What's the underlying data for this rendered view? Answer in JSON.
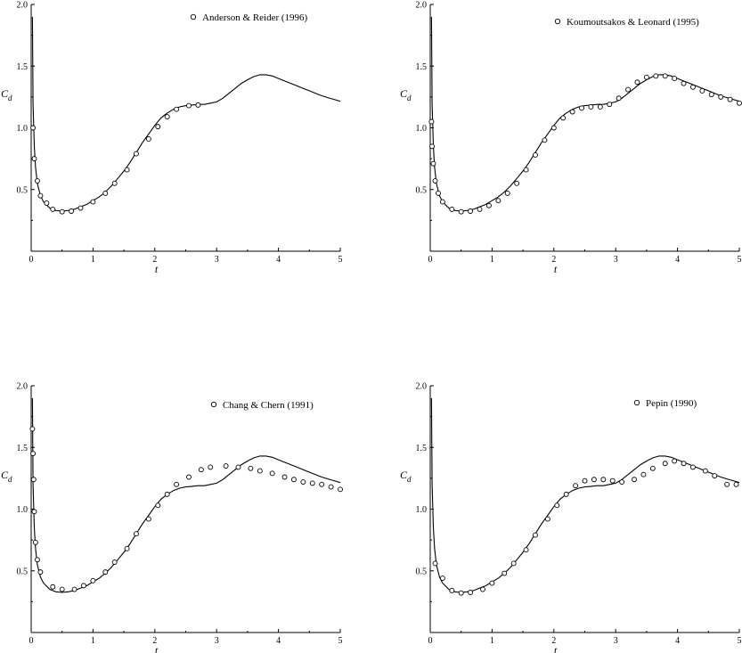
{
  "chart_data": [
    {
      "type": "line",
      "xlabel": "t",
      "ylabel": "C_d",
      "xlim": [
        0,
        5
      ],
      "ylim": [
        0,
        2.0
      ],
      "xticks": [
        "0",
        "1",
        "2",
        "3",
        "4",
        "5"
      ],
      "yticks": [
        "0.5",
        "1.0",
        "1.5",
        "2.0"
      ],
      "grid": false,
      "legend_position": "top-right",
      "series": [
        {
          "style": "solid-line",
          "x": [
            0.02,
            0.03,
            0.05,
            0.07,
            0.1,
            0.15,
            0.2,
            0.3,
            0.4,
            0.5,
            0.6,
            0.7,
            0.8,
            0.9,
            1.0,
            1.1,
            1.2,
            1.3,
            1.4,
            1.5,
            1.6,
            1.7,
            1.8,
            1.9,
            2.0,
            2.1,
            2.2,
            2.3,
            2.4,
            2.5,
            2.6,
            2.7,
            2.8,
            2.9,
            3.0,
            3.1,
            3.2,
            3.3,
            3.4,
            3.5,
            3.6,
            3.7,
            3.8,
            3.9,
            4.0,
            4.1,
            4.2,
            4.3,
            4.4,
            4.5,
            4.6,
            4.7,
            4.8,
            4.9,
            5.0
          ],
          "y": [
            1.9,
            1.2,
            0.85,
            0.68,
            0.55,
            0.45,
            0.4,
            0.35,
            0.33,
            0.325,
            0.33,
            0.34,
            0.36,
            0.38,
            0.41,
            0.44,
            0.48,
            0.53,
            0.59,
            0.65,
            0.72,
            0.8,
            0.88,
            0.95,
            1.02,
            1.08,
            1.12,
            1.15,
            1.17,
            1.18,
            1.185,
            1.19,
            1.19,
            1.2,
            1.21,
            1.24,
            1.28,
            1.32,
            1.36,
            1.39,
            1.415,
            1.43,
            1.43,
            1.42,
            1.4,
            1.38,
            1.36,
            1.34,
            1.32,
            1.3,
            1.28,
            1.26,
            1.245,
            1.23,
            1.215
          ]
        },
        {
          "name": "Anderson & Reider (1996)",
          "style": "open-circles",
          "x": [
            0.03,
            0.05,
            0.1,
            0.15,
            0.25,
            0.35,
            0.5,
            0.65,
            0.8,
            1.0,
            1.2,
            1.35,
            1.55,
            1.7,
            1.9,
            2.05,
            2.2,
            2.35,
            2.55,
            2.7
          ],
          "y": [
            1.0,
            0.75,
            0.57,
            0.45,
            0.39,
            0.34,
            0.32,
            0.325,
            0.35,
            0.4,
            0.47,
            0.55,
            0.66,
            0.79,
            0.91,
            1.01,
            1.09,
            1.15,
            1.18,
            1.185
          ]
        }
      ]
    },
    {
      "type": "line",
      "xlabel": "t",
      "ylabel": "C_d",
      "xlim": [
        0,
        5
      ],
      "ylim": [
        0,
        2.0
      ],
      "xticks": [
        "0",
        "1",
        "2",
        "3",
        "4",
        "5"
      ],
      "yticks": [
        "0.5",
        "1.0",
        "1.5",
        "2.0"
      ],
      "grid": false,
      "legend_position": "top-right",
      "series": [
        {
          "style": "solid-line",
          "x": [
            0.02,
            0.03,
            0.05,
            0.07,
            0.1,
            0.15,
            0.2,
            0.3,
            0.4,
            0.5,
            0.6,
            0.7,
            0.8,
            0.9,
            1.0,
            1.1,
            1.2,
            1.3,
            1.4,
            1.5,
            1.6,
            1.7,
            1.8,
            1.9,
            2.0,
            2.1,
            2.2,
            2.3,
            2.4,
            2.5,
            2.6,
            2.7,
            2.8,
            2.9,
            3.0,
            3.1,
            3.2,
            3.3,
            3.4,
            3.5,
            3.6,
            3.7,
            3.8,
            3.9,
            4.0,
            4.1,
            4.2,
            4.3,
            4.4,
            4.5,
            4.6,
            4.7,
            4.8,
            4.9,
            5.0
          ],
          "y": [
            1.9,
            1.2,
            0.85,
            0.68,
            0.55,
            0.45,
            0.4,
            0.35,
            0.33,
            0.325,
            0.33,
            0.34,
            0.36,
            0.38,
            0.41,
            0.44,
            0.48,
            0.53,
            0.59,
            0.65,
            0.72,
            0.8,
            0.88,
            0.95,
            1.02,
            1.08,
            1.12,
            1.15,
            1.17,
            1.18,
            1.185,
            1.19,
            1.19,
            1.2,
            1.21,
            1.24,
            1.28,
            1.32,
            1.36,
            1.39,
            1.415,
            1.43,
            1.43,
            1.42,
            1.4,
            1.38,
            1.36,
            1.34,
            1.32,
            1.3,
            1.28,
            1.26,
            1.245,
            1.23,
            1.215
          ]
        },
        {
          "name": "Koumoutsakos & Leonard (1995)",
          "style": "open-circles",
          "x": [
            0.02,
            0.03,
            0.05,
            0.08,
            0.13,
            0.2,
            0.35,
            0.5,
            0.65,
            0.8,
            0.95,
            1.1,
            1.25,
            1.4,
            1.55,
            1.7,
            1.85,
            2.0,
            2.15,
            2.3,
            2.45,
            2.6,
            2.75,
            2.9,
            3.05,
            3.2,
            3.35,
            3.5,
            3.65,
            3.8,
            3.95,
            4.1,
            4.25,
            4.4,
            4.55,
            4.7,
            4.85,
            5.0
          ],
          "y": [
            1.05,
            0.85,
            0.71,
            0.57,
            0.47,
            0.4,
            0.34,
            0.32,
            0.325,
            0.34,
            0.37,
            0.41,
            0.47,
            0.55,
            0.66,
            0.78,
            0.9,
            1.0,
            1.08,
            1.13,
            1.16,
            1.17,
            1.17,
            1.19,
            1.24,
            1.31,
            1.37,
            1.41,
            1.42,
            1.42,
            1.4,
            1.36,
            1.33,
            1.3,
            1.27,
            1.25,
            1.23,
            1.2
          ]
        }
      ]
    },
    {
      "type": "line",
      "xlabel": "t",
      "ylabel": "C_d",
      "xlim": [
        0,
        5
      ],
      "ylim": [
        0,
        2.0
      ],
      "xticks": [
        "0",
        "1",
        "2",
        "3",
        "4",
        "5"
      ],
      "yticks": [
        "0.5",
        "1.0",
        "1.5",
        "2.0"
      ],
      "grid": false,
      "legend_position": "top-right",
      "series": [
        {
          "style": "solid-line",
          "x": [
            0.02,
            0.03,
            0.05,
            0.07,
            0.1,
            0.15,
            0.2,
            0.3,
            0.4,
            0.5,
            0.6,
            0.7,
            0.8,
            0.9,
            1.0,
            1.1,
            1.2,
            1.3,
            1.4,
            1.5,
            1.6,
            1.7,
            1.8,
            1.9,
            2.0,
            2.1,
            2.2,
            2.3,
            2.4,
            2.5,
            2.6,
            2.7,
            2.8,
            2.9,
            3.0,
            3.1,
            3.2,
            3.3,
            3.4,
            3.5,
            3.6,
            3.7,
            3.8,
            3.9,
            4.0,
            4.1,
            4.2,
            4.3,
            4.4,
            4.5,
            4.6,
            4.7,
            4.8,
            4.9,
            5.0
          ],
          "y": [
            1.9,
            1.2,
            0.85,
            0.68,
            0.55,
            0.45,
            0.4,
            0.35,
            0.33,
            0.325,
            0.33,
            0.34,
            0.36,
            0.38,
            0.41,
            0.44,
            0.48,
            0.53,
            0.59,
            0.65,
            0.72,
            0.8,
            0.88,
            0.95,
            1.02,
            1.08,
            1.12,
            1.15,
            1.17,
            1.18,
            1.185,
            1.19,
            1.19,
            1.2,
            1.21,
            1.24,
            1.28,
            1.32,
            1.36,
            1.39,
            1.415,
            1.43,
            1.43,
            1.42,
            1.4,
            1.38,
            1.36,
            1.34,
            1.32,
            1.3,
            1.28,
            1.26,
            1.245,
            1.23,
            1.215
          ]
        },
        {
          "name": "Chang & Chern (1991)",
          "style": "open-circles",
          "x": [
            0.02,
            0.03,
            0.04,
            0.05,
            0.07,
            0.1,
            0.15,
            0.35,
            0.5,
            0.7,
            0.85,
            1.0,
            1.2,
            1.35,
            1.55,
            1.7,
            1.9,
            2.05,
            2.2,
            2.35,
            2.55,
            2.75,
            2.9,
            3.15,
            3.35,
            3.55,
            3.7,
            3.9,
            4.1,
            4.25,
            4.4,
            4.55,
            4.7,
            4.85,
            5.0
          ],
          "y": [
            1.65,
            1.45,
            1.24,
            0.98,
            0.73,
            0.59,
            0.49,
            0.37,
            0.35,
            0.35,
            0.38,
            0.42,
            0.49,
            0.57,
            0.68,
            0.8,
            0.92,
            1.03,
            1.12,
            1.2,
            1.26,
            1.32,
            1.34,
            1.35,
            1.34,
            1.33,
            1.31,
            1.29,
            1.26,
            1.24,
            1.22,
            1.21,
            1.2,
            1.18,
            1.16
          ]
        }
      ]
    },
    {
      "type": "line",
      "xlabel": "t",
      "ylabel": "C_d",
      "xlim": [
        0,
        5
      ],
      "ylim": [
        0,
        2.0
      ],
      "xticks": [
        "0",
        "1",
        "2",
        "3",
        "4",
        "5"
      ],
      "yticks": [
        "0.5",
        "1.0",
        "1.5",
        "2.0"
      ],
      "grid": false,
      "legend_position": "top-right",
      "series": [
        {
          "style": "solid-line",
          "x": [
            0.02,
            0.03,
            0.05,
            0.07,
            0.1,
            0.15,
            0.2,
            0.3,
            0.4,
            0.5,
            0.6,
            0.7,
            0.8,
            0.9,
            1.0,
            1.1,
            1.2,
            1.3,
            1.4,
            1.5,
            1.6,
            1.7,
            1.8,
            1.9,
            2.0,
            2.1,
            2.2,
            2.3,
            2.4,
            2.5,
            2.6,
            2.7,
            2.8,
            2.9,
            3.0,
            3.1,
            3.2,
            3.3,
            3.4,
            3.5,
            3.6,
            3.7,
            3.8,
            3.9,
            4.0,
            4.1,
            4.2,
            4.3,
            4.4,
            4.5,
            4.6,
            4.7,
            4.8,
            4.9,
            5.0
          ],
          "y": [
            1.9,
            1.2,
            0.85,
            0.68,
            0.55,
            0.45,
            0.4,
            0.35,
            0.33,
            0.325,
            0.33,
            0.34,
            0.36,
            0.38,
            0.41,
            0.44,
            0.48,
            0.53,
            0.59,
            0.65,
            0.72,
            0.8,
            0.88,
            0.95,
            1.02,
            1.08,
            1.12,
            1.15,
            1.17,
            1.18,
            1.185,
            1.19,
            1.19,
            1.2,
            1.21,
            1.24,
            1.28,
            1.32,
            1.36,
            1.39,
            1.415,
            1.43,
            1.43,
            1.42,
            1.4,
            1.38,
            1.36,
            1.34,
            1.32,
            1.3,
            1.28,
            1.26,
            1.245,
            1.23,
            1.215
          ]
        },
        {
          "name": "Pepin (1990)",
          "style": "open-circles",
          "x": [
            0.08,
            0.2,
            0.35,
            0.5,
            0.65,
            0.85,
            1.0,
            1.2,
            1.35,
            1.55,
            1.7,
            1.9,
            2.05,
            2.2,
            2.35,
            2.5,
            2.65,
            2.8,
            2.95,
            3.1,
            3.3,
            3.45,
            3.6,
            3.8,
            3.95,
            4.1,
            4.25,
            4.45,
            4.6,
            4.8,
            4.95
          ],
          "y": [
            0.56,
            0.44,
            0.34,
            0.32,
            0.325,
            0.35,
            0.4,
            0.48,
            0.56,
            0.67,
            0.79,
            0.92,
            1.03,
            1.12,
            1.19,
            1.23,
            1.24,
            1.24,
            1.23,
            1.22,
            1.24,
            1.28,
            1.33,
            1.37,
            1.39,
            1.37,
            1.34,
            1.31,
            1.27,
            1.2,
            1.2
          ]
        }
      ]
    }
  ]
}
